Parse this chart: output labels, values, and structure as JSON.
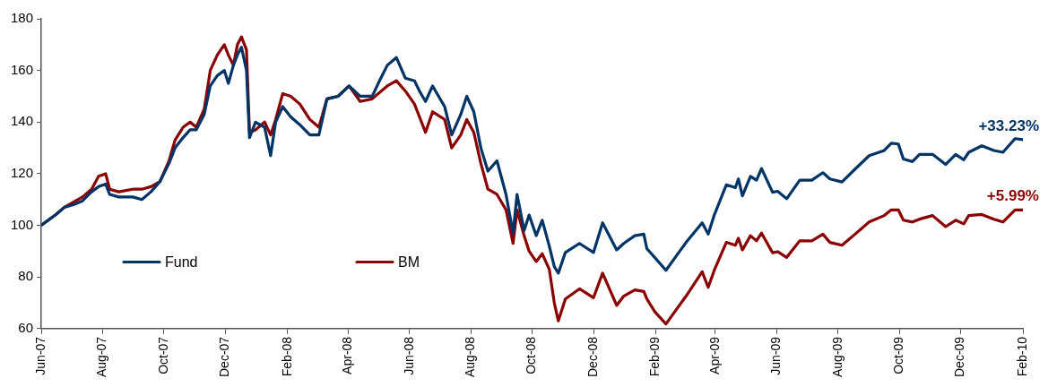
{
  "chart_data": {
    "type": "line",
    "x": [
      "2007-06-01",
      "2007-06-15",
      "2007-06-24",
      "2007-07-03",
      "2007-07-12",
      "2007-07-21",
      "2007-07-28",
      "2007-08-04",
      "2007-08-08",
      "2007-08-17",
      "2007-08-31",
      "2007-09-09",
      "2007-09-18",
      "2007-09-27",
      "2007-10-06",
      "2007-10-12",
      "2007-10-20",
      "2007-10-27",
      "2007-11-02",
      "2007-11-10",
      "2007-11-16",
      "2007-11-23",
      "2007-11-30",
      "2007-12-04",
      "2007-12-09",
      "2007-12-13",
      "2007-12-17",
      "2007-12-22",
      "2007-12-25",
      "2007-12-31",
      "2008-01-09",
      "2008-01-15",
      "2008-01-20",
      "2008-01-27",
      "2008-02-04",
      "2008-02-13",
      "2008-02-23",
      "2008-03-03",
      "2008-03-11",
      "2008-03-22",
      "2008-04-02",
      "2008-04-13",
      "2008-04-25",
      "2008-05-01",
      "2008-05-10",
      "2008-05-19",
      "2008-05-28",
      "2008-06-06",
      "2008-06-11",
      "2008-06-17",
      "2008-06-24",
      "2008-07-06",
      "2008-07-13",
      "2008-07-22",
      "2008-07-28",
      "2008-08-04",
      "2008-08-11",
      "2008-08-18",
      "2008-08-27",
      "2008-09-05",
      "2008-09-12",
      "2008-09-16",
      "2008-09-23",
      "2008-09-28",
      "2008-10-05",
      "2008-10-11",
      "2008-10-18",
      "2008-10-23",
      "2008-10-27",
      "2008-11-03",
      "2008-11-17",
      "2008-12-01",
      "2008-12-10",
      "2008-12-24",
      "2008-12-31",
      "2009-01-11",
      "2009-01-20",
      "2009-01-23",
      "2009-01-31",
      "2009-02-11",
      "2009-03-03",
      "2009-03-19",
      "2009-03-25",
      "2009-03-31",
      "2009-04-12",
      "2009-04-21",
      "2009-04-24",
      "2009-04-28",
      "2009-05-06",
      "2009-05-12",
      "2009-05-17",
      "2009-05-28",
      "2009-06-02",
      "2009-06-11",
      "2009-06-24",
      "2009-07-06",
      "2009-07-17",
      "2009-07-24",
      "2009-08-05",
      "2009-08-18",
      "2009-09-01",
      "2009-09-16",
      "2009-09-23",
      "2009-09-30",
      "2009-10-05",
      "2009-10-14",
      "2009-10-21",
      "2009-11-03",
      "2009-11-16",
      "2009-11-26",
      "2009-12-04",
      "2009-12-09",
      "2009-12-22",
      "2010-01-03",
      "2010-01-12",
      "2010-01-24",
      "2010-02-01"
    ],
    "series": [
      {
        "name": "Fund",
        "color": "#003366",
        "values": [
          100,
          104,
          107,
          108,
          109.5,
          113,
          115,
          116,
          112,
          111,
          111,
          110,
          113,
          117,
          124,
          130,
          134,
          137,
          137,
          143,
          154,
          158,
          160,
          155,
          162,
          166,
          169,
          160,
          134,
          140,
          138,
          127,
          140,
          146,
          142,
          139,
          135,
          135,
          149,
          150,
          154,
          150,
          150,
          155,
          162,
          165,
          157,
          156,
          152,
          148,
          154,
          146,
          135,
          143,
          150,
          144,
          130,
          121,
          125,
          112,
          97,
          112,
          98,
          104,
          96,
          102,
          92,
          84,
          81.5,
          89.5,
          93,
          89.5,
          101,
          90.5,
          93,
          96,
          96.6,
          91,
          87.5,
          82.6,
          93.4,
          101,
          96.6,
          104,
          115.7,
          114.6,
          118,
          111.4,
          119,
          117.5,
          122,
          112.8,
          113.2,
          110.3,
          117.5,
          117.5,
          120.4,
          118,
          116.8,
          121.8,
          127,
          129,
          131.8,
          131.5,
          125.7,
          124.7,
          127.5,
          127.5,
          123.6,
          127.5,
          125.4,
          128.3,
          130.8,
          129,
          128.3,
          133.6,
          133.2
        ]
      },
      {
        "name": "BM",
        "color": "#8b0000",
        "values": [
          100,
          104,
          107,
          109,
          111,
          114,
          119,
          120,
          114,
          113,
          114,
          114,
          115,
          117,
          125,
          133,
          138,
          140,
          138,
          145,
          160,
          166,
          170,
          166,
          162,
          170,
          173,
          168,
          136,
          137,
          140,
          135,
          141,
          151,
          150,
          147,
          141,
          138,
          149,
          150,
          154,
          148,
          149,
          151,
          154,
          156,
          152,
          147,
          142,
          136,
          144,
          141,
          130,
          135,
          141,
          136,
          124,
          114,
          112,
          106,
          93,
          106,
          96,
          90,
          86,
          89,
          83,
          70,
          63,
          71.5,
          75.4,
          72,
          81.5,
          69,
          72.6,
          75,
          74.4,
          71.5,
          66.5,
          61.8,
          72.6,
          82,
          76,
          82.6,
          93.4,
          92.3,
          95,
          90.5,
          96,
          94,
          97,
          89.4,
          89.8,
          87.6,
          94,
          94,
          96.6,
          93.4,
          92.3,
          96.6,
          101.3,
          103.8,
          106,
          106,
          102,
          101.3,
          102.4,
          103.8,
          99.5,
          102,
          100.6,
          103.8,
          104.2,
          102.4,
          101.3,
          106,
          106
        ]
      }
    ],
    "xlim": [
      "2007-06-01",
      "2010-02-01"
    ],
    "xticks": [
      {
        "value": "2007-06-01",
        "label": "Jun-07"
      },
      {
        "value": "2007-08-01",
        "label": "Aug-07"
      },
      {
        "value": "2007-10-01",
        "label": "Oct-07"
      },
      {
        "value": "2007-12-01",
        "label": "Dec-07"
      },
      {
        "value": "2008-02-01",
        "label": "Feb-08"
      },
      {
        "value": "2008-04-01",
        "label": "Apr-08"
      },
      {
        "value": "2008-06-01",
        "label": "Jun-08"
      },
      {
        "value": "2008-08-01",
        "label": "Aug-08"
      },
      {
        "value": "2008-10-01",
        "label": "Oct-08"
      },
      {
        "value": "2008-12-01",
        "label": "Dec-08"
      },
      {
        "value": "2009-02-01",
        "label": "Feb-09"
      },
      {
        "value": "2009-04-01",
        "label": "Apr-09"
      },
      {
        "value": "2009-06-01",
        "label": "Jun-09"
      },
      {
        "value": "2009-08-01",
        "label": "Aug-09"
      },
      {
        "value": "2009-10-01",
        "label": "Oct-09"
      },
      {
        "value": "2009-12-01",
        "label": "Dec-09"
      },
      {
        "value": "2010-02-01",
        "label": "Feb-10"
      }
    ],
    "ylim": [
      60,
      180
    ],
    "yticks": [
      60,
      80,
      100,
      120,
      140,
      160,
      180
    ],
    "annotations": [
      {
        "text": "+33.23%",
        "x": "2010-02-01",
        "y": 133.23
      },
      {
        "text": "+5.99%",
        "x": "2010-02-01",
        "y": 105.99
      }
    ],
    "legend": "bottom left",
    "grid": false,
    "marker": "none",
    "line_style": "solid"
  }
}
